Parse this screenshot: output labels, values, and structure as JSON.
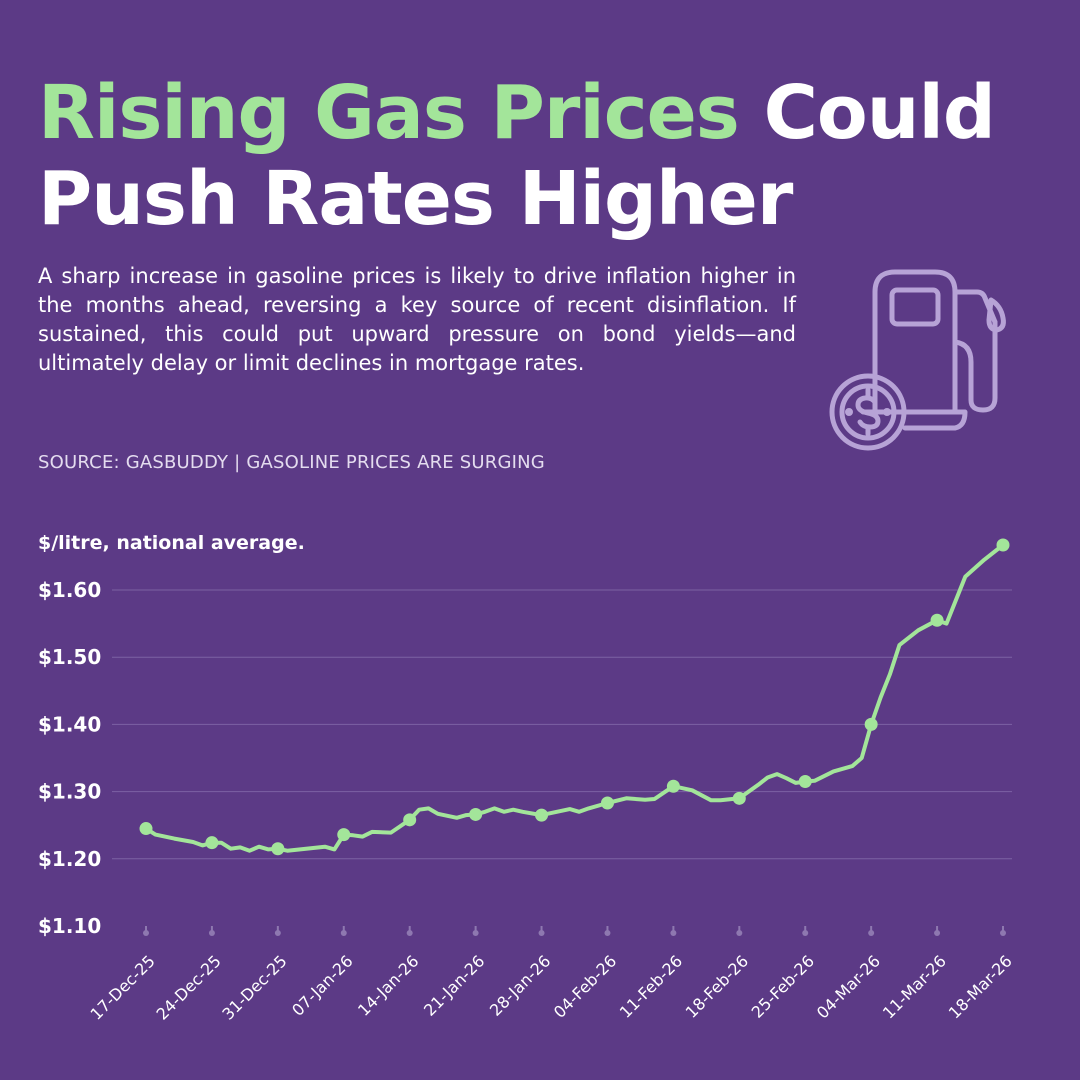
{
  "header": {
    "title_highlight": "Rising Gas Prices",
    "title_rest": "Could Push Rates Higher",
    "description": "A sharp increase in gasoline prices is likely to drive inflation higher in the months ahead, reversing a key source of recent disinflation. If sustained, this could put upward pressure on bond yields—and ultimately delay or limit declines in mortgage rates.",
    "source": "SOURCE: GASBUDDY | GASOLINE PRICES ARE SURGING"
  },
  "icon": {
    "name": "gas-pump-dollar-icon",
    "color": "#b7a3d6"
  },
  "colors": {
    "background": "#5c3a86",
    "line": "#a3e59a",
    "grid": "#7d62a3",
    "text": "#ffffff"
  },
  "chart_data": {
    "type": "line",
    "ylabel": "$/litre, national average.",
    "ylim": [
      1.1,
      1.67
    ],
    "yticks": [
      1.1,
      1.2,
      1.3,
      1.4,
      1.5,
      1.6
    ],
    "ytick_labels": [
      "$1.10",
      "$1.20",
      "$1.30",
      "$1.40",
      "$1.50",
      "$1.60"
    ],
    "grid": true,
    "x_ticks": [
      "17-Dec-25",
      "24-Dec-25",
      "31-Dec-25",
      "07-Jan-26",
      "14-Jan-26",
      "21-Jan-26",
      "28-Jan-26",
      "04-Feb-26",
      "11-Feb-26",
      "18-Feb-26",
      "25-Feb-26",
      "04-Mar-26",
      "11-Mar-26",
      "18-Mar-26"
    ],
    "marker_dates": [
      "17-Dec-25",
      "24-Dec-25",
      "31-Dec-25",
      "07-Jan-26",
      "14-Jan-26",
      "21-Jan-26",
      "28-Jan-26",
      "04-Feb-26",
      "11-Feb-26",
      "18-Feb-26",
      "25-Feb-26",
      "04-Mar-26",
      "11-Mar-26",
      "18-Mar-26"
    ],
    "series": [
      {
        "dates": [
          "2025-12-17",
          "2025-12-18",
          "2025-12-20",
          "2025-12-22",
          "2025-12-23",
          "2025-12-24",
          "2025-12-25",
          "2025-12-26",
          "2025-12-27",
          "2025-12-28",
          "2025-12-29",
          "2025-12-30",
          "2025-12-31",
          "2026-01-01",
          "2026-01-03",
          "2026-01-05",
          "2026-01-06",
          "2026-01-07",
          "2026-01-08",
          "2026-01-09",
          "2026-01-10",
          "2026-01-12",
          "2026-01-14",
          "2026-01-15",
          "2026-01-16",
          "2026-01-17",
          "2026-01-19",
          "2026-01-20",
          "2026-01-21",
          "2026-01-22",
          "2026-01-23",
          "2026-01-24",
          "2026-01-25",
          "2026-01-26",
          "2026-01-28",
          "2026-01-31",
          "2026-02-01",
          "2026-02-02",
          "2026-02-04",
          "2026-02-06",
          "2026-02-08",
          "2026-02-09",
          "2026-02-11",
          "2026-02-13",
          "2026-02-15",
          "2026-02-16",
          "2026-02-18",
          "2026-02-20",
          "2026-02-21",
          "2026-02-22",
          "2026-02-23",
          "2026-02-24",
          "2026-02-25",
          "2026-02-26",
          "2026-02-28",
          "2026-03-02",
          "2026-03-03",
          "2026-03-04",
          "2026-03-05",
          "2026-03-06",
          "2026-03-07",
          "2026-03-09",
          "2026-03-11",
          "2026-03-12",
          "2026-03-14",
          "2026-03-16",
          "2026-03-18"
        ],
        "values": [
          1.245,
          1.236,
          1.23,
          1.225,
          1.22,
          1.224,
          1.224,
          1.215,
          1.217,
          1.212,
          1.218,
          1.214,
          1.215,
          1.212,
          1.215,
          1.218,
          1.214,
          1.236,
          1.235,
          1.233,
          1.24,
          1.239,
          1.258,
          1.273,
          1.275,
          1.267,
          1.261,
          1.265,
          1.266,
          1.27,
          1.275,
          1.27,
          1.273,
          1.27,
          1.265,
          1.274,
          1.27,
          1.275,
          1.283,
          1.29,
          1.288,
          1.289,
          1.308,
          1.302,
          1.287,
          1.287,
          1.29,
          1.31,
          1.321,
          1.326,
          1.32,
          1.313,
          1.315,
          1.316,
          1.33,
          1.338,
          1.35,
          1.4,
          1.44,
          1.475,
          1.518,
          1.54,
          1.555,
          1.55,
          1.62,
          1.645,
          1.667
        ]
      }
    ]
  }
}
